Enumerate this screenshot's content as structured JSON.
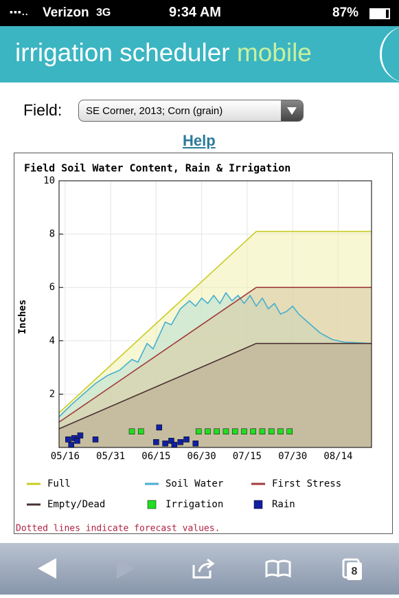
{
  "status_bar": {
    "carrier": "Verizon",
    "network": "3G",
    "time": "9:34 AM",
    "battery": "87%"
  },
  "header": {
    "title": "irrigation scheduler",
    "title_accent": "mobile"
  },
  "field": {
    "label": "Field:",
    "selected": "SE Corner, 2013; Corn (grain)"
  },
  "help": "Help",
  "chart_data": {
    "type": "line",
    "title": "Field Soil Water Content, Rain & Irrigation",
    "y_label": "Inches",
    "xlim": [
      "05/14",
      "08/25"
    ],
    "xticks": [
      "05/16",
      "05/31",
      "06/15",
      "06/30",
      "07/15",
      "07/30",
      "08/14"
    ],
    "ylim": [
      0,
      10
    ],
    "yticks": [
      2,
      4,
      6,
      8,
      10
    ],
    "grid": true,
    "series": [
      {
        "name": "Full",
        "color": "#c8cc22",
        "fill": "#f0f0b0",
        "style": "line",
        "x": [
          "05/14",
          "07/18",
          "08/25"
        ],
        "values": [
          1.3,
          8.1,
          8.1
        ]
      },
      {
        "name": "Soil Water",
        "color": "#44aed0",
        "fill": "#b8e0d0",
        "style": "line",
        "x": [
          "05/14",
          "05/18",
          "05/22",
          "05/26",
          "05/30",
          "06/03",
          "06/07",
          "06/09",
          "06/12",
          "06/14",
          "06/18",
          "06/20",
          "06/23",
          "06/26",
          "06/28",
          "06/30",
          "07/02",
          "07/04",
          "07/06",
          "07/08",
          "07/10",
          "07/12",
          "07/14",
          "07/16",
          "07/18",
          "07/20",
          "07/22",
          "07/24",
          "07/26",
          "07/28",
          "07/30",
          "08/01",
          "08/04",
          "08/08",
          "08/12",
          "08/16",
          "08/25"
        ],
        "values": [
          1.15,
          1.6,
          2.0,
          2.4,
          2.7,
          2.9,
          3.3,
          3.2,
          3.9,
          3.7,
          4.7,
          4.6,
          5.2,
          5.5,
          5.3,
          5.6,
          5.4,
          5.7,
          5.4,
          5.8,
          5.5,
          5.7,
          5.4,
          5.7,
          5.3,
          5.6,
          5.2,
          5.4,
          5.0,
          5.1,
          5.3,
          5.0,
          4.7,
          4.3,
          4.05,
          3.95,
          3.9
        ]
      },
      {
        "name": "First Stress",
        "color": "#a03a3a",
        "fill": "#d8c8a0",
        "style": "line",
        "x": [
          "05/14",
          "07/18",
          "08/25"
        ],
        "values": [
          0.95,
          6.0,
          6.0
        ]
      },
      {
        "name": "Empty/Dead",
        "color": "#4a3030",
        "fill": "#b8a890",
        "style": "line",
        "x": [
          "05/14",
          "07/18",
          "08/25"
        ],
        "values": [
          0.7,
          3.9,
          3.9
        ]
      },
      {
        "name": "Irrigation",
        "color": "#22dd22",
        "style": "square",
        "x": [
          "06/07",
          "06/10",
          "06/29",
          "07/02",
          "07/05",
          "07/08",
          "07/11",
          "07/14",
          "07/17",
          "07/20",
          "07/23",
          "07/26",
          "07/29"
        ],
        "values": [
          0.6,
          0.6,
          0.6,
          0.6,
          0.6,
          0.6,
          0.6,
          0.6,
          0.6,
          0.6,
          0.6,
          0.6,
          0.6
        ]
      },
      {
        "name": "Rain",
        "color": "#1020a0",
        "style": "square",
        "x": [
          "05/17",
          "05/18",
          "05/19",
          "05/20",
          "05/21",
          "05/26",
          "06/15",
          "06/16",
          "06/18",
          "06/20",
          "06/21",
          "06/23",
          "06/25",
          "06/28"
        ],
        "values": [
          0.3,
          0.1,
          0.35,
          0.25,
          0.45,
          0.3,
          0.2,
          0.75,
          0.15,
          0.25,
          0.1,
          0.2,
          0.3,
          0.15
        ]
      }
    ]
  },
  "footnote": "Dotted lines indicate forecast values.",
  "toolbar": {
    "tabs_count": "8"
  }
}
